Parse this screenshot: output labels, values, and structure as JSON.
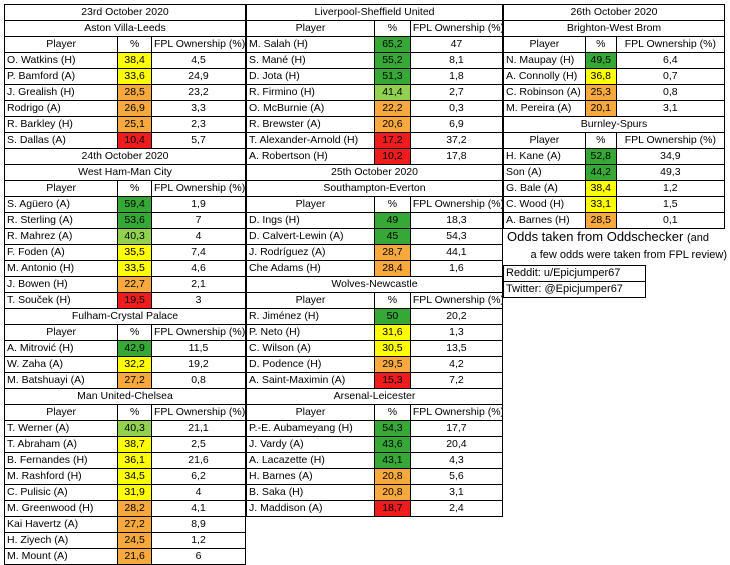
{
  "columns": [
    {
      "header": "23rd October 2020",
      "sections": [
        {
          "title": "Aston Villa-Leeds",
          "colheads": [
            "Player",
            "%",
            "FPL Ownership (%)"
          ],
          "rows": [
            [
              "O. Watkins (H)",
              "38,4",
              "4,5",
              "#ffff00"
            ],
            [
              "P. Bamford (A)",
              "33,6",
              "24,9",
              "#ffff00"
            ],
            [
              "J. Grealish (H)",
              "28,5",
              "23,2",
              "#f8a93e"
            ],
            [
              "Rodrigo (A)",
              "26,9",
              "3,3",
              "#f8a93e"
            ],
            [
              "R. Barkley (H)",
              "25,1",
              "2,3",
              "#f8a93e"
            ],
            [
              "S. Dallas (A)",
              "10,4",
              "5,7",
              "#ee1c1c"
            ]
          ]
        },
        {
          "subheader": "24th October 2020",
          "title": "West Ham-Man City",
          "colheads": [
            "Player",
            "%",
            "FPL Ownership (%)"
          ],
          "rows": [
            [
              "S. Agüero (A)",
              "59,4",
              "1,9",
              "#35a836"
            ],
            [
              "R. Sterling (A)",
              "53,6",
              "7",
              "#35a836"
            ],
            [
              "R. Mahrez (A)",
              "40,3",
              "4",
              "#92d050"
            ],
            [
              "F. Foden (A)",
              "35,5",
              "7,4",
              "#ffff00"
            ],
            [
              "M. Antonio (H)",
              "33,5",
              "4,6",
              "#ffff00"
            ],
            [
              "J. Bowen (H)",
              "22,7",
              "2,1",
              "#f8a93e"
            ],
            [
              "T. Souček (H)",
              "19,5",
              "3",
              "#ee1c1c"
            ]
          ]
        },
        {
          "title": "Fulham-Crystal Palace",
          "colheads": [
            "Player",
            "%",
            "FPL Ownership (%)"
          ],
          "rows": [
            [
              "A. Mitrović (H)",
              "42,9",
              "11,5",
              "#35a836"
            ],
            [
              "W. Zaha (A)",
              "32,2",
              "19,2",
              "#ffff00"
            ],
            [
              "M. Batshuayi (A)",
              "27,2",
              "0,8",
              "#f8a93e"
            ]
          ]
        },
        {
          "title": "Man United-Chelsea",
          "colheads": [
            "Player",
            "%",
            "FPL Ownership (%)"
          ],
          "rows": [
            [
              "T. Werner (A)",
              "40,3",
              "21,1",
              "#92d050"
            ],
            [
              "T. Abraham (A)",
              "38,7",
              "2,5",
              "#ffff00"
            ],
            [
              "B. Fernandes (H)",
              "36,1",
              "21,6",
              "#ffff00"
            ],
            [
              "M. Rashford (H)",
              "34,5",
              "6,2",
              "#ffff00"
            ],
            [
              "C. Pulisic (A)",
              "31,9",
              "4",
              "#ffff00"
            ],
            [
              "M. Greenwood (H)",
              "28,2",
              "4,1",
              "#f8a93e"
            ],
            [
              "Kai Havertz (A)",
              "27,2",
              "8,9",
              "#f8a93e"
            ],
            [
              "H. Ziyech (A)",
              "24,5",
              "1,2",
              "#f8a93e"
            ],
            [
              "M. Mount (A)",
              "21,6",
              "6",
              "#f8a93e"
            ]
          ]
        }
      ]
    },
    {
      "header": "Liverpool-Sheffield United",
      "sections": [
        {
          "colheads": [
            "Player",
            "%",
            "FPL Ownership (%)"
          ],
          "rows": [
            [
              "M. Salah (H)",
              "65,2",
              "47",
              "#35a836"
            ],
            [
              "S. Mané (H)",
              "55,2",
              "8,1",
              "#35a836"
            ],
            [
              "D. Jota (H)",
              "51,3",
              "1,8",
              "#35a836"
            ],
            [
              "R. Firmino (H)",
              "41,4",
              "2,7",
              "#92d050"
            ],
            [
              "O. McBurnie (A)",
              "22,2",
              "0,3",
              "#f8a93e"
            ],
            [
              "R. Brewster (A)",
              "20,6",
              "6,9",
              "#f8a93e"
            ],
            [
              "T. Alexander-Arnold (H)",
              "17,2",
              "37,2",
              "#ee1c1c"
            ],
            [
              "A. Robertson (H)",
              "10,2",
              "17,8",
              "#ee1c1c"
            ]
          ]
        },
        {
          "subheader": "25th October 2020",
          "title": "Southampton-Everton",
          "colheads": [
            "Player",
            "%",
            "FPL Ownership (%)"
          ],
          "rows": [
            [
              "D. Ings (H)",
              "49",
              "18,3",
              "#35a836"
            ],
            [
              "D. Calvert-Lewin (A)",
              "45",
              "54,3",
              "#35a836"
            ],
            [
              "J. Rodríguez (A)",
              "28,7",
              "44,1",
              "#f8a93e"
            ],
            [
              "Che Adams (H)",
              "28,4",
              "1,6",
              "#f8a93e"
            ]
          ]
        },
        {
          "title": "Wolves-Newcastle",
          "colheads": [
            "Player",
            "%",
            "FPL Ownership (%)"
          ],
          "rows": [
            [
              "R. Jiménez (H)",
              "50",
              "20,2",
              "#35a836"
            ],
            [
              "P. Neto (H)",
              "31,6",
              "1,3",
              "#ffff00"
            ],
            [
              "C. Wilson (A)",
              "30,5",
              "13,5",
              "#ffff00"
            ],
            [
              "D. Podence (H)",
              "29,5",
              "4,2",
              "#f8a93e"
            ],
            [
              "A. Saint-Maximin (A)",
              "15,3",
              "7,2",
              "#ee1c1c"
            ]
          ]
        },
        {
          "title": "Arsenal-Leicester",
          "colheads": [
            "Player",
            "%",
            "FPL Ownership (%)"
          ],
          "rows": [
            [
              "P.-E. Aubameyang (H)",
              "54,3",
              "17,7",
              "#35a836"
            ],
            [
              "J. Vardy (A)",
              "43,6",
              "20,4",
              "#35a836"
            ],
            [
              "A. Lacazette (H)",
              "43,1",
              "4,3",
              "#35a836"
            ],
            [
              "H. Barnes (A)",
              "20,8",
              "5,6",
              "#f8a93e"
            ],
            [
              "B. Saka (H)",
              "20,8",
              "3,1",
              "#f8a93e"
            ],
            [
              "J. Maddison (A)",
              "18,7",
              "2,4",
              "#ee1c1c"
            ]
          ]
        }
      ]
    },
    {
      "header": "26th October 2020",
      "sections": [
        {
          "title": "Brighton-West Brom",
          "colheads": [
            "Player",
            "%",
            "FPL Ownership (%)"
          ],
          "rows": [
            [
              "N. Maupay (H)",
              "49,5",
              "6,4",
              "#35a836"
            ],
            [
              "A. Connolly (H)",
              "36,8",
              "0,7",
              "#ffff00"
            ],
            [
              "C. Robinson (A)",
              "25,3",
              "0,8",
              "#f8a93e"
            ],
            [
              "M. Pereira (A)",
              "20,1",
              "3,1",
              "#f8a93e"
            ]
          ]
        },
        {
          "title": "Burnley-Spurs",
          "colheads": [
            "Player",
            "%",
            "FPL Ownership (%)"
          ],
          "rows": [
            [
              "H. Kane (A)",
              "52,8",
              "34,9",
              "#35a836"
            ],
            [
              "Son (A)",
              "44,2",
              "49,3",
              "#35a836"
            ],
            [
              "G. Bale (A)",
              "38,4",
              "1,2",
              "#ffff00"
            ],
            [
              "C. Wood (H)",
              "33,1",
              "1,5",
              "#ffff00"
            ],
            [
              "A. Barnes (H)",
              "28,5",
              "0,1",
              "#f8a93e"
            ]
          ]
        }
      ]
    }
  ],
  "note": {
    "line1": "Odds taken from Oddschecker",
    "line1b": "(and",
    "line2": "a few odds were taken from FPL review)"
  },
  "credits": {
    "reddit": "Reddit: u/Epicjumper67",
    "twitter": "Twitter: @Epicjumper67"
  }
}
